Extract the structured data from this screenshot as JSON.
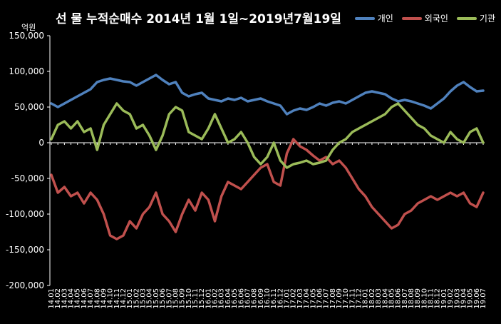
{
  "chart_data": {
    "type": "line",
    "title": "선 물 누적순매수 2014년 1월 1일~2019년7월19일",
    "unit_label": "억원",
    "ylim": [
      -200000,
      150000
    ],
    "y_ticks": [
      "150,000",
      "100,000",
      "50,000",
      "0",
      "-50,000",
      "-100,000",
      "-150,000",
      "-200,000"
    ],
    "y_tick_values": [
      150000,
      100000,
      50000,
      0,
      -50000,
      -100000,
      -150000,
      -200000
    ],
    "grid": false,
    "legend_position": "top-right",
    "categories": [
      "14.01",
      "14.02",
      "14.03",
      "14.04",
      "14.05",
      "14.06",
      "14.07",
      "14.08",
      "14.09",
      "14.10",
      "14.11",
      "14.12",
      "15.01",
      "15.02",
      "15.03",
      "15.04",
      "15.05",
      "15.06",
      "15.07",
      "15.08",
      "15.09",
      "15.10",
      "15.11",
      "15.12",
      "16.01",
      "16.02",
      "16.03",
      "16.04",
      "16.05",
      "16.06",
      "16.07",
      "16.08",
      "16.09",
      "16.10",
      "16.11",
      "16.12",
      "17.01",
      "17.02",
      "17.03",
      "17.04",
      "17.05",
      "17.06",
      "17.07",
      "17.08",
      "17.09",
      "17.10",
      "17.11",
      "17.12",
      "18.01",
      "18.02",
      "18.03",
      "18.04",
      "18.05",
      "18.06",
      "18.07",
      "18.08",
      "18.09",
      "18.10",
      "18.11",
      "18.12",
      "19.01",
      "19.02",
      "19.03",
      "19.04",
      "19.05",
      "19.06",
      "19.07"
    ],
    "series": [
      {
        "name": "개인",
        "color": "#4f81bd",
        "values": [
          55000,
          50000,
          55000,
          60000,
          65000,
          70000,
          75000,
          85000,
          88000,
          90000,
          88000,
          86000,
          85000,
          80000,
          85000,
          90000,
          95000,
          88000,
          82000,
          85000,
          70000,
          65000,
          68000,
          70000,
          62000,
          60000,
          58000,
          62000,
          60000,
          63000,
          58000,
          60000,
          62000,
          58000,
          55000,
          52000,
          40000,
          45000,
          48000,
          46000,
          50000,
          55000,
          52000,
          56000,
          58000,
          55000,
          60000,
          65000,
          70000,
          72000,
          70000,
          68000,
          62000,
          58000,
          60000,
          58000,
          55000,
          52000,
          48000,
          55000,
          62000,
          72000,
          80000,
          85000,
          78000,
          72000,
          73000
        ]
      },
      {
        "name": "외국인",
        "color": "#c0504d",
        "values": [
          -45000,
          -70000,
          -62000,
          -75000,
          -70000,
          -85000,
          -70000,
          -80000,
          -100000,
          -130000,
          -135000,
          -130000,
          -110000,
          -120000,
          -100000,
          -90000,
          -70000,
          -100000,
          -110000,
          -125000,
          -100000,
          -80000,
          -95000,
          -70000,
          -80000,
          -110000,
          -75000,
          -55000,
          -60000,
          -65000,
          -55000,
          -45000,
          -35000,
          -30000,
          -55000,
          -60000,
          -15000,
          5000,
          -5000,
          -10000,
          -18000,
          -25000,
          -20000,
          -30000,
          -25000,
          -35000,
          -50000,
          -65000,
          -75000,
          -90000,
          -100000,
          -110000,
          -120000,
          -115000,
          -100000,
          -95000,
          -85000,
          -80000,
          -75000,
          -80000,
          -75000,
          -70000,
          -75000,
          -70000,
          -85000,
          -90000,
          -70000
        ]
      },
      {
        "name": "기관",
        "color": "#9bbb59",
        "values": [
          5000,
          25000,
          30000,
          20000,
          30000,
          15000,
          20000,
          -10000,
          25000,
          40000,
          55000,
          45000,
          40000,
          20000,
          25000,
          10000,
          -10000,
          10000,
          40000,
          50000,
          45000,
          15000,
          10000,
          5000,
          20000,
          40000,
          20000,
          0,
          5000,
          15000,
          0,
          -20000,
          -30000,
          -20000,
          0,
          -25000,
          -35000,
          -30000,
          -28000,
          -25000,
          -30000,
          -28000,
          -25000,
          -10000,
          0,
          5000,
          15000,
          20000,
          25000,
          30000,
          35000,
          40000,
          50000,
          55000,
          45000,
          35000,
          25000,
          20000,
          10000,
          5000,
          0,
          15000,
          5000,
          0,
          15000,
          20000,
          0
        ]
      }
    ]
  }
}
